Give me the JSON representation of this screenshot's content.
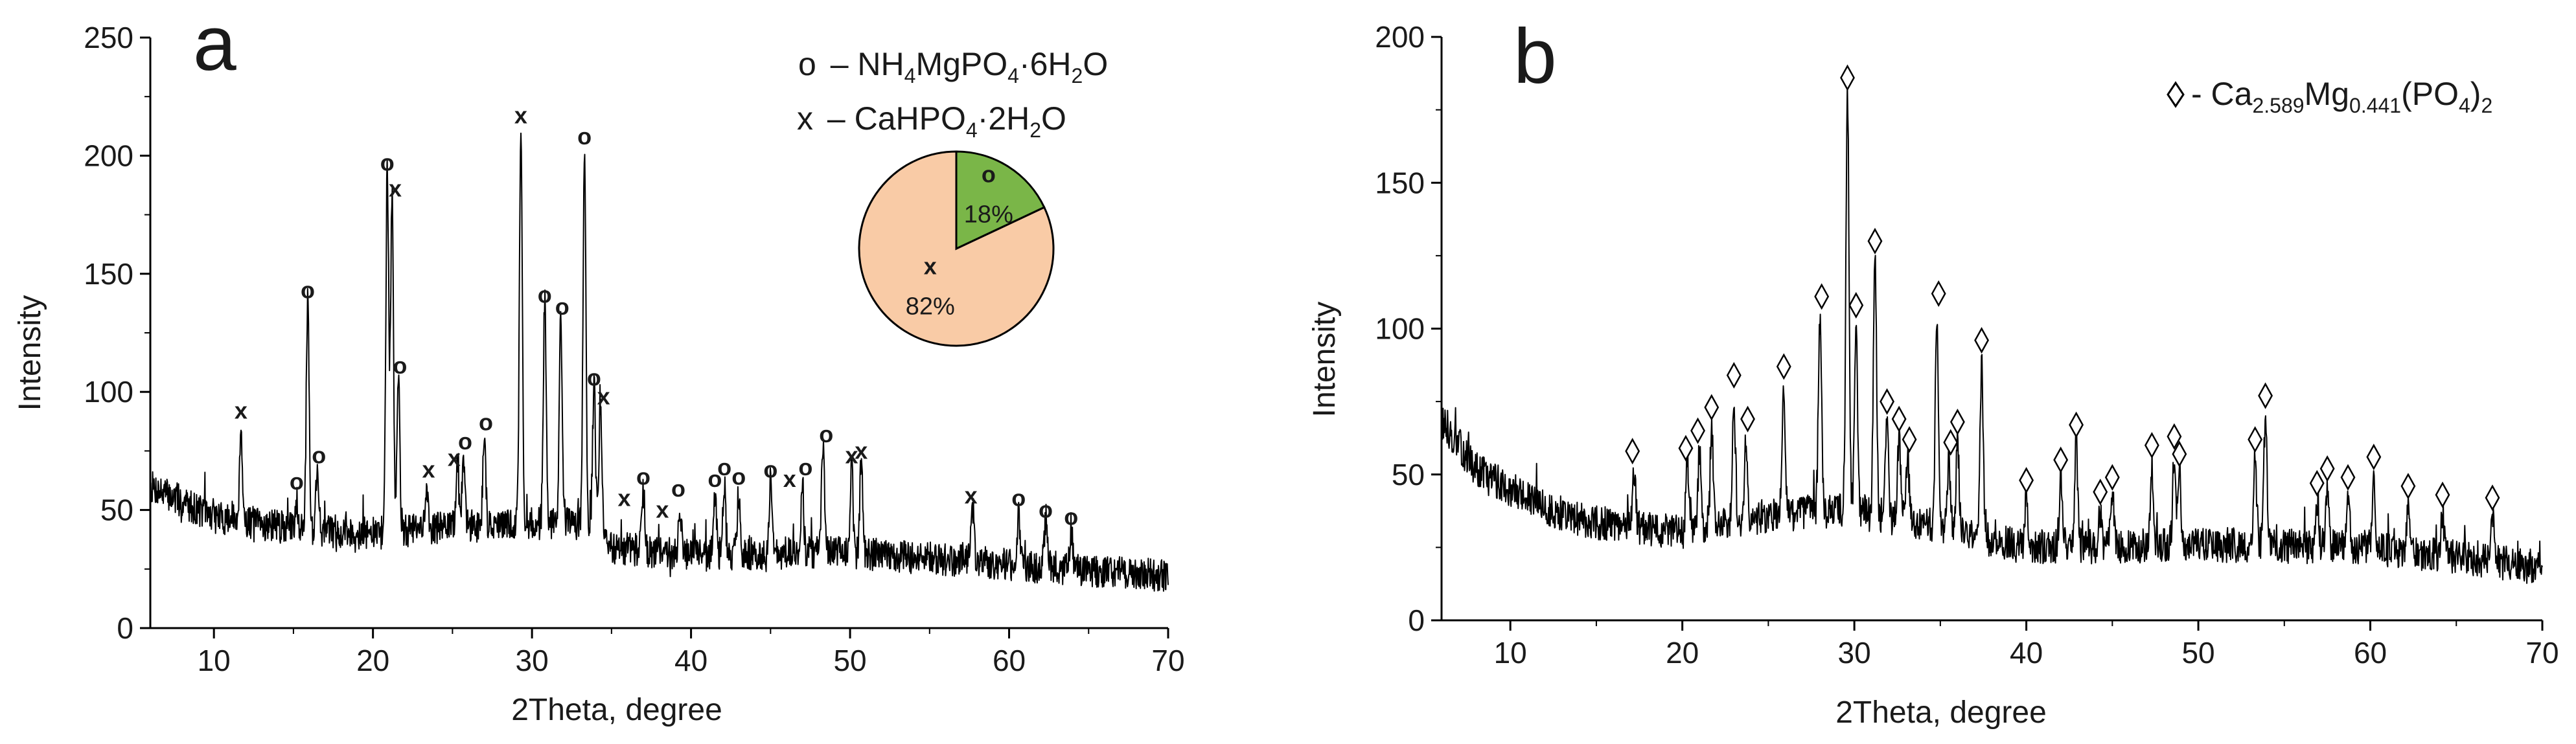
{
  "chart_data": [
    {
      "type": "line",
      "panel_label": "a",
      "xlabel": "2Theta, degree",
      "ylabel": "Intensity",
      "xlim": [
        6,
        70
      ],
      "ylim": [
        0,
        250
      ],
      "xticks": [
        10,
        20,
        30,
        40,
        50,
        60,
        70
      ],
      "yticks": [
        0,
        50,
        100,
        150,
        200,
        250
      ],
      "baseline": [
        [
          6,
          60
        ],
        [
          10,
          47
        ],
        [
          15,
          42
        ],
        [
          20,
          40
        ],
        [
          25,
          43
        ],
        [
          30,
          44
        ],
        [
          34,
          44
        ],
        [
          35,
          34
        ],
        [
          40,
          31
        ],
        [
          50,
          32
        ],
        [
          60,
          27
        ],
        [
          70,
          22
        ]
      ],
      "noise": 7,
      "peaks": [
        {
          "x": 11.7,
          "y": 85
        },
        {
          "x": 15.2,
          "y": 55
        },
        {
          "x": 15.9,
          "y": 140
        },
        {
          "x": 16.5,
          "y": 68
        },
        {
          "x": 20.9,
          "y": 195
        },
        {
          "x": 21.2,
          "y": 182
        },
        {
          "x": 21.6,
          "y": 106
        },
        {
          "x": 23.4,
          "y": 60
        },
        {
          "x": 25.3,
          "y": 68
        },
        {
          "x": 25.7,
          "y": 73
        },
        {
          "x": 27.0,
          "y": 82
        },
        {
          "x": 29.3,
          "y": 214
        },
        {
          "x": 30.8,
          "y": 140
        },
        {
          "x": 31.8,
          "y": 132
        },
        {
          "x": 33.3,
          "y": 205
        },
        {
          "x": 33.9,
          "y": 102
        },
        {
          "x": 34.3,
          "y": 95
        },
        {
          "x": 37.0,
          "y": 58
        },
        {
          "x": 39.3,
          "y": 52
        },
        {
          "x": 41.5,
          "y": 58
        },
        {
          "x": 42.1,
          "y": 62
        },
        {
          "x": 43.0,
          "y": 58
        },
        {
          "x": 45.0,
          "y": 62
        },
        {
          "x": 47.0,
          "y": 62
        },
        {
          "x": 48.3,
          "y": 78
        },
        {
          "x": 50.1,
          "y": 68
        },
        {
          "x": 50.7,
          "y": 70
        },
        {
          "x": 57.7,
          "y": 52
        },
        {
          "x": 60.6,
          "y": 48
        },
        {
          "x": 62.3,
          "y": 46
        },
        {
          "x": 63.9,
          "y": 42
        }
      ],
      "markers": [
        {
          "x": 11.7,
          "y": 92,
          "sym": "x"
        },
        {
          "x": 15.2,
          "y": 62,
          "sym": "o"
        },
        {
          "x": 15.9,
          "y": 143,
          "sym": "o"
        },
        {
          "x": 16.6,
          "y": 73,
          "sym": "o"
        },
        {
          "x": 20.9,
          "y": 197,
          "sym": "o"
        },
        {
          "x": 21.4,
          "y": 186,
          "sym": "x"
        },
        {
          "x": 21.7,
          "y": 111,
          "sym": "o"
        },
        {
          "x": 23.5,
          "y": 67,
          "sym": "x"
        },
        {
          "x": 25.1,
          "y": 72,
          "sym": "x"
        },
        {
          "x": 25.8,
          "y": 79,
          "sym": "o"
        },
        {
          "x": 27.1,
          "y": 87,
          "sym": "o"
        },
        {
          "x": 29.3,
          "y": 217,
          "sym": "x"
        },
        {
          "x": 30.8,
          "y": 141,
          "sym": "o"
        },
        {
          "x": 31.9,
          "y": 136,
          "sym": "o"
        },
        {
          "x": 33.3,
          "y": 208,
          "sym": "o"
        },
        {
          "x": 33.9,
          "y": 106,
          "sym": "o"
        },
        {
          "x": 34.5,
          "y": 98,
          "sym": "x"
        },
        {
          "x": 35.8,
          "y": 55,
          "sym": "x"
        },
        {
          "x": 37.0,
          "y": 64,
          "sym": "o"
        },
        {
          "x": 38.2,
          "y": 50,
          "sym": "x"
        },
        {
          "x": 39.2,
          "y": 59,
          "sym": "o"
        },
        {
          "x": 41.5,
          "y": 63,
          "sym": "o"
        },
        {
          "x": 42.1,
          "y": 68,
          "sym": "o"
        },
        {
          "x": 43.0,
          "y": 64,
          "sym": "o"
        },
        {
          "x": 45.0,
          "y": 67,
          "sym": "o"
        },
        {
          "x": 46.2,
          "y": 63,
          "sym": "x"
        },
        {
          "x": 47.2,
          "y": 68,
          "sym": "o"
        },
        {
          "x": 48.5,
          "y": 82,
          "sym": "o"
        },
        {
          "x": 50.1,
          "y": 73,
          "sym": "x"
        },
        {
          "x": 50.7,
          "y": 75,
          "sym": "x"
        },
        {
          "x": 57.6,
          "y": 56,
          "sym": "x"
        },
        {
          "x": 60.6,
          "y": 55,
          "sym": "o"
        },
        {
          "x": 62.3,
          "y": 50,
          "sym": "o"
        },
        {
          "x": 63.9,
          "y": 47,
          "sym": "o"
        }
      ],
      "legend": [
        {
          "symbol": "o",
          "text": "– NH4MgPO4·6H2O"
        },
        {
          "symbol": "x",
          "text": "– CaHPO4·2H2O"
        }
      ],
      "pie": {
        "slices": [
          {
            "marker": "o",
            "label": "18%",
            "value": 18,
            "color": "#7ab648"
          },
          {
            "marker": "x",
            "label": "82%",
            "value": 82,
            "color": "#f9cba6"
          }
        ]
      }
    },
    {
      "type": "line",
      "panel_label": "b",
      "xlabel": "2Theta, degree",
      "ylabel": "Intensity",
      "xlim": [
        6,
        70
      ],
      "ylim": [
        0,
        200
      ],
      "xticks": [
        10,
        20,
        30,
        40,
        50,
        60,
        70
      ],
      "yticks": [
        0,
        50,
        100,
        150,
        200
      ],
      "baseline": [
        [
          6,
          68
        ],
        [
          8,
          52
        ],
        [
          12,
          38
        ],
        [
          16,
          32
        ],
        [
          20,
          30
        ],
        [
          25,
          36
        ],
        [
          30,
          38
        ],
        [
          36,
          30
        ],
        [
          40,
          25
        ],
        [
          50,
          26
        ],
        [
          60,
          25
        ],
        [
          70,
          18
        ]
      ],
      "noise": 6,
      "peaks": [
        {
          "x": 17.2,
          "y": 52
        },
        {
          "x": 20.3,
          "y": 55
        },
        {
          "x": 21.0,
          "y": 58
        },
        {
          "x": 21.7,
          "y": 66
        },
        {
          "x": 23.0,
          "y": 76
        },
        {
          "x": 23.7,
          "y": 62
        },
        {
          "x": 25.9,
          "y": 80
        },
        {
          "x": 28.0,
          "y": 104
        },
        {
          "x": 29.6,
          "y": 180
        },
        {
          "x": 30.1,
          "y": 100
        },
        {
          "x": 31.2,
          "y": 124
        },
        {
          "x": 31.9,
          "y": 68
        },
        {
          "x": 32.6,
          "y": 62
        },
        {
          "x": 33.1,
          "y": 55
        },
        {
          "x": 34.8,
          "y": 106
        },
        {
          "x": 35.5,
          "y": 55
        },
        {
          "x": 36.0,
          "y": 61
        },
        {
          "x": 37.4,
          "y": 88
        },
        {
          "x": 40.0,
          "y": 42
        },
        {
          "x": 42.0,
          "y": 49
        },
        {
          "x": 42.9,
          "y": 60
        },
        {
          "x": 44.3,
          "y": 38
        },
        {
          "x": 45.0,
          "y": 43
        },
        {
          "x": 47.3,
          "y": 53
        },
        {
          "x": 48.6,
          "y": 56
        },
        {
          "x": 48.9,
          "y": 50
        },
        {
          "x": 53.3,
          "y": 56
        },
        {
          "x": 53.9,
          "y": 70
        },
        {
          "x": 56.9,
          "y": 41
        },
        {
          "x": 57.5,
          "y": 46
        },
        {
          "x": 58.7,
          "y": 43
        },
        {
          "x": 60.2,
          "y": 49
        },
        {
          "x": 62.2,
          "y": 39
        },
        {
          "x": 64.2,
          "y": 36
        },
        {
          "x": 67.1,
          "y": 35
        }
      ],
      "markers": [
        {
          "x": 17.1,
          "y": 58
        },
        {
          "x": 20.2,
          "y": 59
        },
        {
          "x": 20.9,
          "y": 65
        },
        {
          "x": 21.7,
          "y": 73
        },
        {
          "x": 23.0,
          "y": 84
        },
        {
          "x": 23.8,
          "y": 69
        },
        {
          "x": 25.9,
          "y": 87
        },
        {
          "x": 28.1,
          "y": 111
        },
        {
          "x": 29.6,
          "y": 186
        },
        {
          "x": 30.1,
          "y": 108
        },
        {
          "x": 31.2,
          "y": 130
        },
        {
          "x": 31.9,
          "y": 75
        },
        {
          "x": 32.6,
          "y": 69
        },
        {
          "x": 33.2,
          "y": 62
        },
        {
          "x": 34.9,
          "y": 112
        },
        {
          "x": 35.6,
          "y": 61
        },
        {
          "x": 36.0,
          "y": 68
        },
        {
          "x": 37.4,
          "y": 96
        },
        {
          "x": 40.0,
          "y": 48
        },
        {
          "x": 42.0,
          "y": 55
        },
        {
          "x": 42.9,
          "y": 67
        },
        {
          "x": 44.3,
          "y": 44
        },
        {
          "x": 45.0,
          "y": 49
        },
        {
          "x": 47.3,
          "y": 60
        },
        {
          "x": 48.6,
          "y": 63
        },
        {
          "x": 48.9,
          "y": 57
        },
        {
          "x": 53.3,
          "y": 62
        },
        {
          "x": 53.9,
          "y": 77
        },
        {
          "x": 56.9,
          "y": 47
        },
        {
          "x": 57.5,
          "y": 52
        },
        {
          "x": 58.7,
          "y": 49
        },
        {
          "x": 60.2,
          "y": 56
        },
        {
          "x": 62.2,
          "y": 46
        },
        {
          "x": 64.2,
          "y": 43
        },
        {
          "x": 67.1,
          "y": 42
        }
      ],
      "legend": [
        {
          "symbol": "diamond",
          "text": "- Ca2.589Mg0.441(PO4)2"
        }
      ]
    }
  ]
}
